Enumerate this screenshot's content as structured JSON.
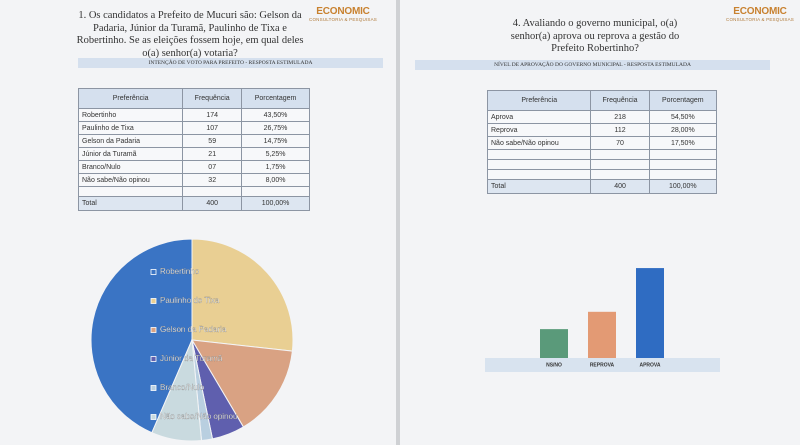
{
  "left_page": {
    "logo": "ECONOMIC",
    "logo_tagline": "CONSULTORIA & PESQUISAS",
    "question": "1. Os candidatos a Prefeito de Mucuri são: Gelson da Padaria, Júnior da Turamã, Paulinho de Tixa e Robertinho. Se as eleições fossem hoje, em qual deles o(a) senhor(a) votaria?",
    "section_header": "INTENÇÃO DE VOTO PARA PREFEITO - RESPOSTA ESTIMULADA",
    "table": {
      "columns": [
        "Preferência",
        "Frequência",
        "Porcentagem"
      ],
      "rows": [
        [
          "Robertinho",
          "174",
          "43,50%"
        ],
        [
          "Paulinho de Tixa",
          "107",
          "26,75%"
        ],
        [
          "Gelson da Padaria",
          "59",
          "14,75%"
        ],
        [
          "Júnior da Turamã",
          "21",
          "5,25%"
        ],
        [
          "Branco/Nulo",
          "07",
          "1,75%"
        ],
        [
          "Não sabe/Não opinou",
          "32",
          "8,00%"
        ]
      ],
      "total": [
        "Total",
        "400",
        "100,00%"
      ]
    }
  },
  "right_page": {
    "logo": "ECONOMIC",
    "logo_tagline": "CONSULTORIA & PESQUISAS",
    "question": "4. Avaliando o governo municipal, o(a) senhor(a) aprova ou reprova a gestão do Prefeito Robertinho?",
    "section_header": "NÍVEL DE APROVAÇÃO DO GOVERNO MUNICIPAL - RESPOSTA ESTIMULADA",
    "table": {
      "columns": [
        "Preferência",
        "Frequência",
        "Porcentagem"
      ],
      "rows": [
        [
          "Aprova",
          "218",
          "54,50%"
        ],
        [
          "Reprova",
          "112",
          "28,00%"
        ],
        [
          "Não sabe/Não opinou",
          "70",
          "17,50%"
        ]
      ],
      "total": [
        "Total",
        "400",
        "100,00%"
      ]
    }
  },
  "chart_data": [
    {
      "type": "pie",
      "categories": [
        "Robertinho",
        "Paulinho de Tixa",
        "Gelson da Padaria",
        "Júnior da Turamã",
        "Branco/Nulo",
        "Não sabe/Não opinou"
      ],
      "values": [
        43.5,
        26.75,
        14.75,
        5.25,
        1.75,
        8
      ],
      "colors": [
        "#3a74c4",
        "#e9cf93",
        "#d9a283",
        "#5f5fae",
        "#b9cfe0",
        "#c9dadf"
      ]
    },
    {
      "type": "bar",
      "categories": [
        "NS/NO",
        "REPROVA",
        "APROVA"
      ],
      "values": [
        17.5,
        28,
        54.5
      ],
      "colors": [
        "#5a9a7a",
        "#e39a74",
        "#2f6cc2"
      ]
    }
  ]
}
